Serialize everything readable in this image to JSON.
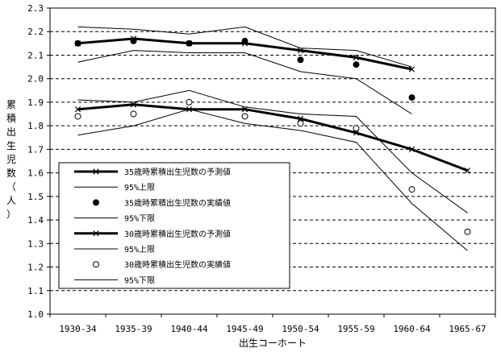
{
  "chart_data": {
    "type": "line",
    "title": "",
    "xlabel": "出生コーホート",
    "ylabel": "累積出生児数（人）",
    "categories": [
      "1930-34",
      "1935-39",
      "1940-44",
      "1945-49",
      "1950-54",
      "1955-59",
      "1960-64",
      "1965-67"
    ],
    "ylim": [
      1.0,
      2.3
    ],
    "ytick_step": 0.1,
    "grid": "horizontal dashed",
    "legend_position": "lower-left",
    "series": [
      {
        "name": "35歳時累積出生児数の予測値",
        "style": "thick-line-x-marker",
        "values": [
          2.15,
          2.17,
          2.15,
          2.15,
          2.12,
          2.09,
          2.04,
          null
        ]
      },
      {
        "name": "95%上限",
        "style": "thin-line",
        "values": [
          2.22,
          2.21,
          2.19,
          2.22,
          2.13,
          2.12,
          2.05,
          null
        ]
      },
      {
        "name": "35歳時累積出生児数の実績値",
        "style": "filled-circle",
        "values": [
          2.15,
          2.16,
          2.15,
          2.16,
          2.08,
          2.06,
          1.92,
          null
        ]
      },
      {
        "name": "95%下限",
        "style": "thin-line",
        "values": [
          2.07,
          2.12,
          2.11,
          2.11,
          2.03,
          2.0,
          1.85,
          null
        ]
      },
      {
        "name": "30歳時累積出生児数の予測値",
        "style": "thick-line-x-marker",
        "values": [
          1.87,
          1.89,
          1.87,
          1.87,
          1.83,
          1.77,
          1.7,
          1.61
        ]
      },
      {
        "name": "95%上限",
        "style": "thin-line",
        "values": [
          1.91,
          1.9,
          1.95,
          1.88,
          1.85,
          1.84,
          1.6,
          1.43
        ]
      },
      {
        "name": "30歳時累積出生児数の実績値",
        "style": "open-circle",
        "values": [
          1.84,
          1.85,
          1.9,
          1.84,
          1.81,
          1.79,
          1.53,
          1.35
        ]
      },
      {
        "name": "95%下限",
        "style": "thin-line",
        "values": [
          1.76,
          1.8,
          1.87,
          1.81,
          1.78,
          1.73,
          1.47,
          1.27
        ]
      }
    ]
  }
}
